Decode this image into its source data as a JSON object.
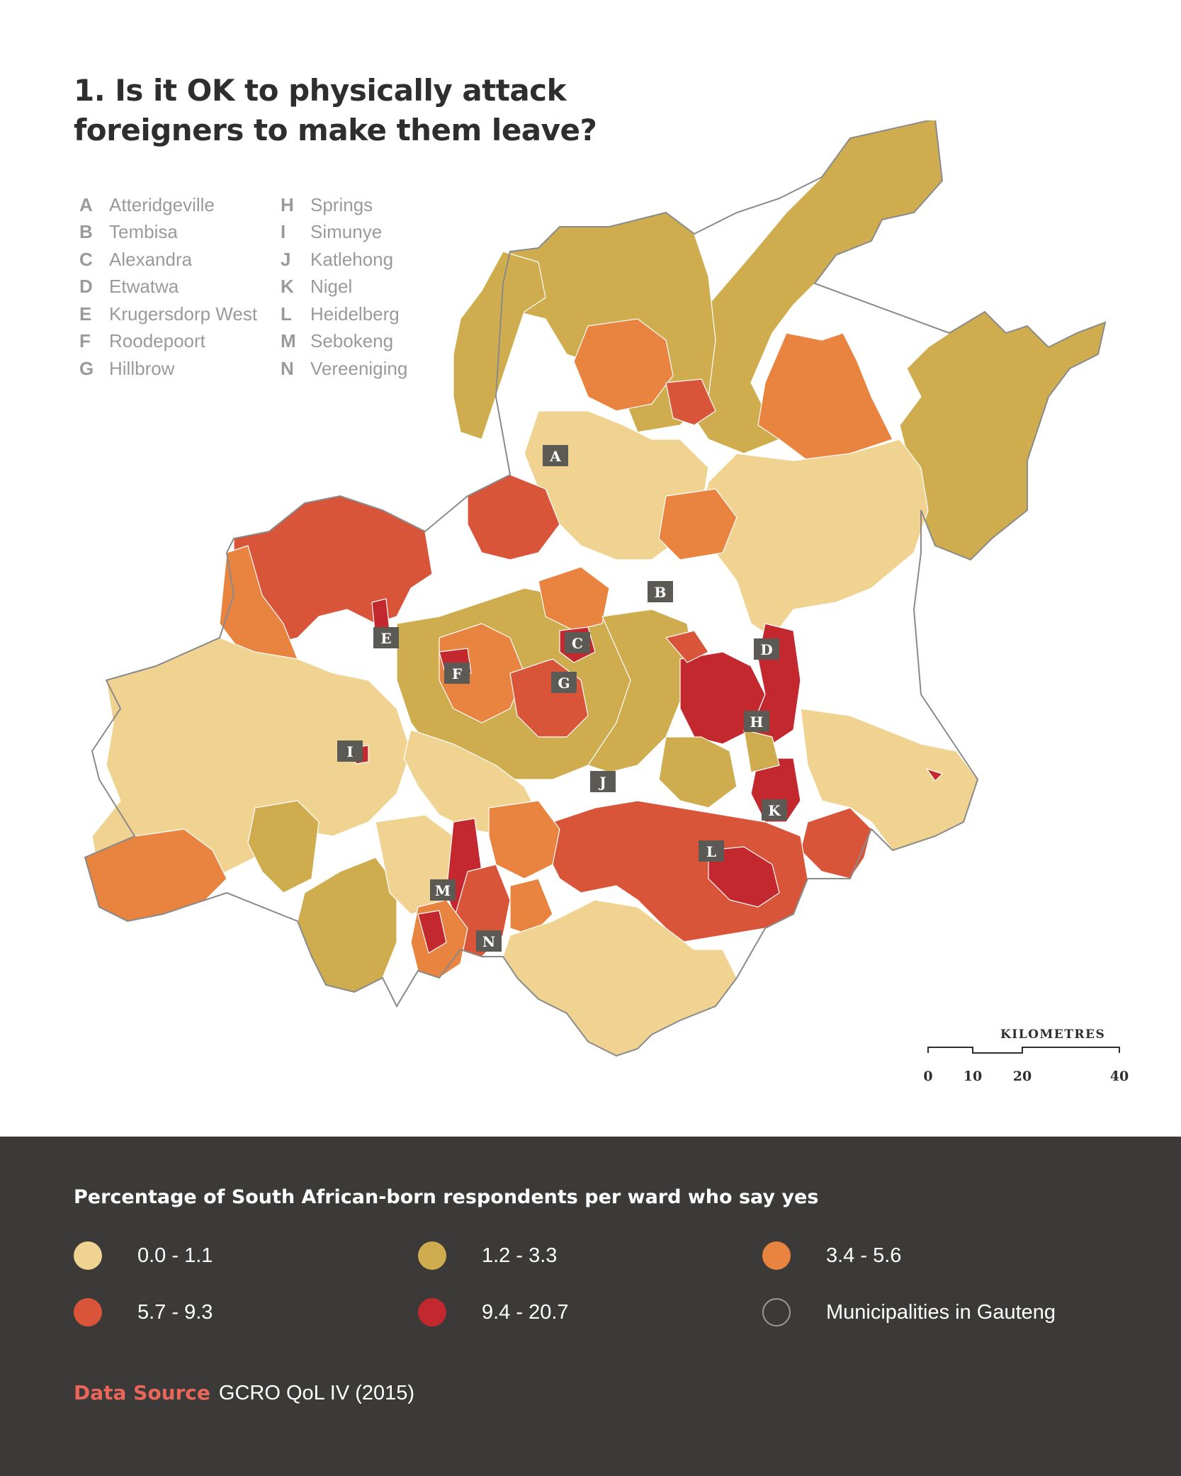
{
  "title": "1. Is it OK to physically attack foreigners to make them leave?",
  "key_left": [
    {
      "letter": "A",
      "name": "Atteridgeville"
    },
    {
      "letter": "B",
      "name": "Tembisa"
    },
    {
      "letter": "C",
      "name": "Alexandra"
    },
    {
      "letter": "D",
      "name": "Etwatwa"
    },
    {
      "letter": "E",
      "name": "Krugersdorp West"
    },
    {
      "letter": "F",
      "name": "Roodepoort"
    },
    {
      "letter": "G",
      "name": "Hillbrow"
    }
  ],
  "key_right": [
    {
      "letter": "H",
      "name": "Springs"
    },
    {
      "letter": "I",
      "name": "Simunye"
    },
    {
      "letter": "J",
      "name": "Katlehong"
    },
    {
      "letter": "K",
      "name": "Nigel"
    },
    {
      "letter": "L",
      "name": "Heidelberg"
    },
    {
      "letter": "M",
      "name": "Sebokeng"
    },
    {
      "letter": "N",
      "name": "Vereeniging"
    }
  ],
  "scale": {
    "title": "KILOMETRES",
    "ticks": [
      "0",
      "10",
      "20",
      "40"
    ]
  },
  "legend": {
    "title": "Percentage of South African-born respondents per ward who say yes",
    "items": [
      {
        "label": "0.0 - 1.1",
        "color": "#f1d391"
      },
      {
        "label": "1.2 - 3.3",
        "color": "#cfad4f"
      },
      {
        "label": "3.4 - 5.6",
        "color": "#e8843f"
      },
      {
        "label": "5.7 - 9.3",
        "color": "#d9553a"
      },
      {
        "label": "9.4 - 20.7",
        "color": "#c4282f"
      },
      {
        "label": "Municipalities in Gauteng",
        "color": "outline"
      }
    ]
  },
  "source": {
    "label": "Data Source",
    "value": "GCRO QoL IV (2015)"
  }
}
